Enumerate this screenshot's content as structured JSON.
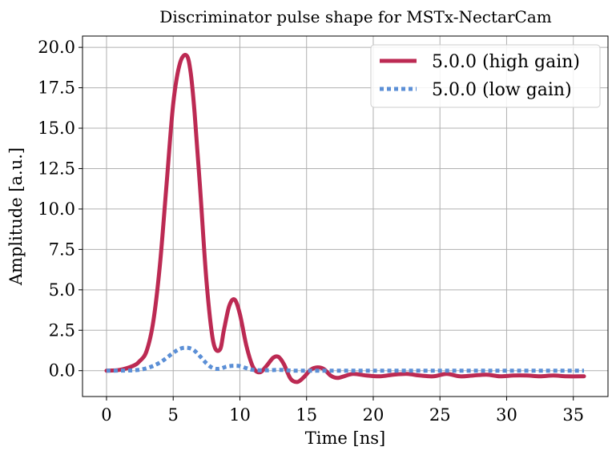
{
  "chart_data": {
    "type": "line",
    "title": "Discriminator pulse shape for MSTx-NectarCam",
    "xlabel": "Time [ns]",
    "ylabel": "Amplitude [a.u.]",
    "xlim": [
      -1.8,
      37.6
    ],
    "ylim": [
      -1.6,
      20.7
    ],
    "grid": true,
    "legend_position": "top-right",
    "x_ticks": [
      0,
      5,
      10,
      15,
      20,
      25,
      30,
      35
    ],
    "x_tick_labels": [
      "0",
      "5",
      "10",
      "15",
      "20",
      "25",
      "30",
      "35"
    ],
    "y_ticks": [
      0,
      2.5,
      5,
      7.5,
      10,
      12.5,
      15,
      17.5,
      20
    ],
    "y_tick_labels": [
      "0.0",
      "2.5",
      "5.0",
      "7.5",
      "10.0",
      "12.5",
      "15.0",
      "17.5",
      "20.0"
    ],
    "series": [
      {
        "name": "5.0.0 (high gain)",
        "color": "#BC2A53",
        "style": "solid",
        "x": [
          0,
          1,
          2,
          2.5,
          3,
          3.5,
          4,
          4.5,
          5,
          5.5,
          6,
          6.3,
          6.6,
          7,
          7.5,
          8,
          8.5,
          8.8,
          9.2,
          9.6,
          10,
          10.5,
          11,
          11.5,
          12,
          12.5,
          12.9,
          13.3,
          13.8,
          14.3,
          14.8,
          15.3,
          15.8,
          16.3,
          16.8,
          17.3,
          17.8,
          18.5,
          19.5,
          20.5,
          21.5,
          22.5,
          23.5,
          24.5,
          25.5,
          26.5,
          27.5,
          28.5,
          29.5,
          30.5,
          31.5,
          32.5,
          33.5,
          34.5,
          35.8
        ],
        "y": [
          0,
          0.05,
          0.3,
          0.6,
          1.2,
          3.0,
          6.5,
          11.5,
          16.5,
          19.0,
          19.5,
          18.5,
          16.0,
          11.5,
          5.5,
          1.8,
          1.3,
          2.5,
          4.0,
          4.4,
          3.5,
          1.5,
          0.2,
          -0.1,
          0.3,
          0.8,
          0.85,
          0.4,
          -0.5,
          -0.7,
          -0.4,
          0.05,
          0.2,
          0.1,
          -0.3,
          -0.45,
          -0.35,
          -0.2,
          -0.3,
          -0.35,
          -0.25,
          -0.2,
          -0.3,
          -0.35,
          -0.2,
          -0.35,
          -0.3,
          -0.25,
          -0.35,
          -0.3,
          -0.3,
          -0.35,
          -0.3,
          -0.35,
          -0.35
        ]
      },
      {
        "name": "5.0.0 (low gain)",
        "color": "#5B8FD6",
        "style": "dotted",
        "x": [
          0,
          2,
          3,
          4,
          5,
          5.5,
          6,
          6.5,
          7,
          7.5,
          8,
          8.5,
          9,
          9.5,
          10,
          10.5,
          11,
          12,
          13,
          14,
          15,
          16,
          20,
          25,
          30,
          35.8
        ],
        "y": [
          0,
          0.02,
          0.15,
          0.5,
          1.1,
          1.35,
          1.42,
          1.3,
          0.9,
          0.45,
          0.15,
          0.12,
          0.25,
          0.3,
          0.28,
          0.15,
          0.05,
          0.02,
          0.05,
          0.0,
          0.0,
          0.0,
          0.0,
          0.0,
          0.0,
          0.0
        ]
      }
    ]
  }
}
